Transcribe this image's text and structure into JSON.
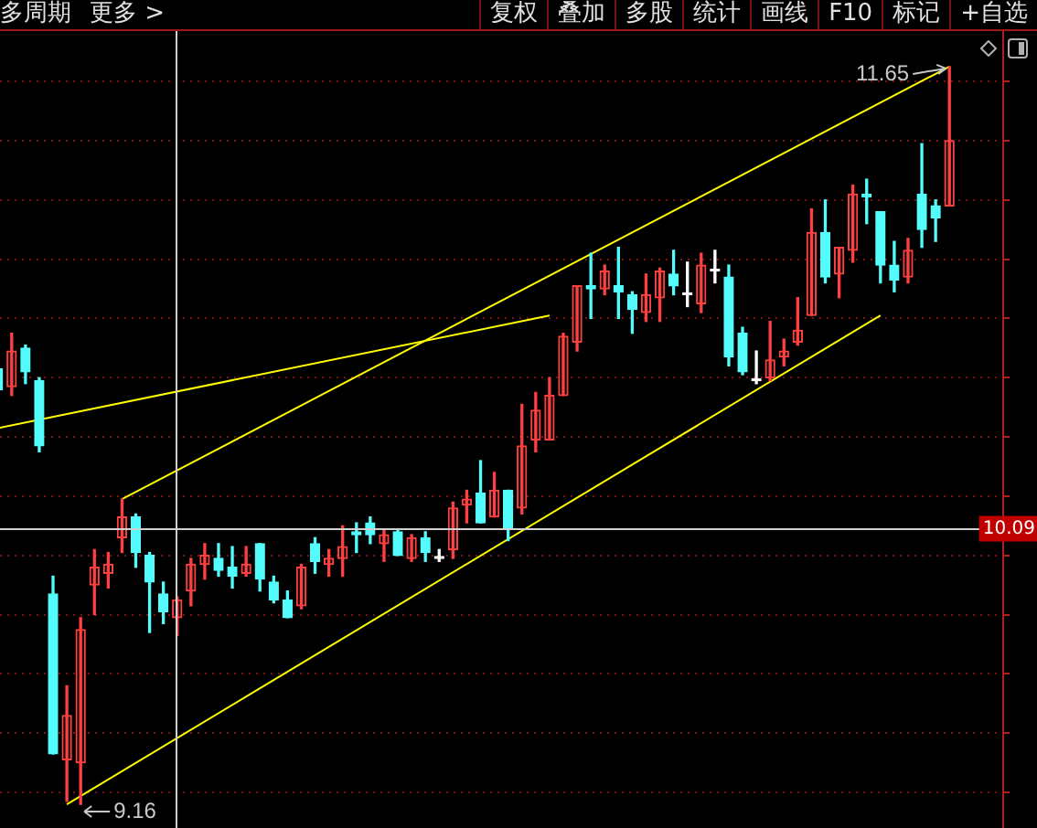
{
  "chart_data": {
    "type": "candlestick",
    "categories": [
      null,
      null,
      null,
      null,
      null,
      null,
      null,
      null,
      null,
      null,
      null,
      null,
      null,
      null,
      null,
      null,
      null,
      null,
      null,
      null,
      null,
      null,
      null,
      null,
      null,
      null,
      null,
      null,
      null,
      null,
      null,
      null,
      null,
      null,
      null,
      null,
      null,
      null,
      null,
      null,
      null,
      null,
      null,
      null,
      null,
      null,
      null,
      null,
      null,
      null,
      null,
      null,
      null,
      null,
      null,
      null,
      null,
      null,
      null,
      null,
      null,
      null,
      null,
      null,
      null,
      null,
      null,
      null,
      null,
      null
    ],
    "ohlc": [
      [
        10.63,
        10.64,
        10.55,
        10.56
      ],
      [
        10.57,
        10.75,
        10.54,
        10.69
      ],
      [
        10.7,
        10.71,
        10.58,
        10.62
      ],
      [
        10.59,
        10.6,
        10.35,
        10.37
      ],
      [
        9.87,
        9.93,
        9.33,
        9.33
      ],
      [
        9.31,
        9.56,
        9.17,
        9.46
      ],
      [
        9.3,
        9.79,
        9.16,
        9.75
      ],
      [
        9.9,
        10.02,
        9.8,
        9.96
      ],
      [
        9.94,
        10.01,
        9.89,
        9.97
      ],
      [
        10.06,
        10.19,
        10.01,
        10.13
      ],
      [
        10.13,
        10.14,
        9.96,
        10.01
      ],
      [
        10.0,
        10.01,
        9.74,
        9.91
      ],
      [
        9.87,
        9.91,
        9.77,
        9.81
      ],
      [
        9.79,
        9.86,
        9.73,
        9.85
      ],
      [
        9.88,
        9.99,
        9.83,
        9.97
      ],
      [
        9.97,
        10.04,
        9.92,
        10.0
      ],
      [
        9.99,
        10.04,
        9.93,
        9.95
      ],
      [
        9.96,
        10.03,
        9.89,
        9.93
      ],
      [
        9.94,
        10.03,
        9.93,
        9.97
      ],
      [
        10.04,
        10.04,
        9.88,
        9.92
      ],
      [
        9.91,
        9.93,
        9.84,
        9.85
      ],
      [
        9.85,
        9.88,
        9.79,
        9.79
      ],
      [
        9.83,
        9.97,
        9.82,
        9.96
      ],
      [
        10.04,
        10.06,
        9.94,
        9.98
      ],
      [
        9.97,
        10.02,
        9.93,
        9.99
      ],
      [
        9.99,
        10.1,
        9.93,
        10.03
      ],
      [
        10.08,
        10.11,
        10.01,
        10.07
      ],
      [
        10.11,
        10.13,
        10.04,
        10.07
      ],
      [
        10.04,
        10.09,
        9.98,
        10.07
      ],
      [
        10.08,
        10.09,
        10.0,
        10.0
      ],
      [
        9.99,
        10.07,
        9.98,
        10.06
      ],
      [
        10.06,
        10.08,
        9.98,
        10.01
      ],
      [
        9.99,
        10.02,
        9.98,
        9.99
      ],
      [
        10.02,
        10.18,
        9.99,
        10.16
      ],
      [
        10.17,
        10.22,
        10.11,
        10.19
      ],
      [
        10.21,
        10.32,
        10.11,
        10.11
      ],
      [
        10.13,
        10.28,
        10.13,
        10.22
      ],
      [
        10.22,
        10.22,
        10.05,
        10.09
      ],
      [
        10.16,
        10.51,
        10.14,
        10.37
      ],
      [
        10.39,
        10.55,
        10.35,
        10.49
      ],
      [
        10.39,
        10.6,
        10.39,
        10.54
      ],
      [
        10.54,
        10.75,
        10.54,
        10.74
      ],
      [
        10.72,
        10.91,
        10.69,
        10.91
      ],
      [
        10.91,
        11.02,
        10.8,
        10.9
      ],
      [
        10.9,
        10.98,
        10.88,
        10.96
      ],
      [
        10.91,
        11.04,
        10.8,
        10.89
      ],
      [
        10.88,
        10.89,
        10.75,
        10.83
      ],
      [
        10.82,
        10.95,
        10.79,
        10.88
      ],
      [
        10.87,
        10.97,
        10.79,
        10.96
      ],
      [
        10.95,
        11.03,
        10.88,
        10.91
      ],
      [
        10.88,
        10.99,
        10.84,
        10.88
      ],
      [
        10.85,
        11.02,
        10.82,
        10.98
      ],
      [
        10.96,
        11.03,
        10.92,
        10.96
      ],
      [
        10.94,
        10.98,
        10.64,
        10.67
      ],
      [
        10.75,
        10.77,
        10.61,
        10.62
      ],
      [
        10.59,
        10.69,
        10.58,
        10.59
      ],
      [
        10.6,
        10.79,
        10.59,
        10.66
      ],
      [
        10.67,
        10.73,
        10.64,
        10.69
      ],
      [
        10.72,
        10.87,
        10.71,
        10.76
      ],
      [
        10.81,
        11.17,
        10.81,
        11.09
      ],
      [
        11.09,
        11.2,
        10.92,
        10.94
      ],
      [
        10.95,
        11.04,
        10.87,
        11.04
      ],
      [
        11.03,
        11.25,
        10.99,
        11.22
      ],
      [
        11.22,
        11.27,
        11.12,
        11.21
      ],
      [
        11.16,
        11.16,
        10.92,
        10.98
      ],
      [
        10.98,
        11.06,
        10.89,
        10.93
      ],
      [
        10.94,
        11.07,
        10.92,
        11.03
      ],
      [
        11.22,
        11.39,
        11.04,
        11.1
      ],
      [
        11.18,
        11.2,
        11.06,
        11.14
      ],
      [
        11.18,
        11.65,
        11.18,
        11.4
      ]
    ],
    "series": [
      {
        "type": "line",
        "color": "#ffff00",
        "values": [
          null,
          null,
          null,
          null,
          null,
          null,
          null,
          null,
          null,
          10.19,
          null,
          null,
          null,
          null,
          null,
          null,
          null,
          null,
          null,
          null,
          null,
          null,
          null,
          null,
          null,
          null,
          null,
          null,
          null,
          null,
          null,
          null,
          null,
          null,
          null,
          null,
          null,
          null,
          null,
          null,
          null,
          null,
          null,
          null,
          null,
          null,
          null,
          null,
          null,
          null,
          null,
          null,
          null,
          null,
          null,
          null,
          null,
          null,
          null,
          null,
          null,
          null,
          null,
          null,
          null,
          null,
          null,
          null,
          null,
          11.65
        ]
      },
      {
        "type": "line",
        "color": "#ffff00",
        "values": [
          null,
          null,
          null,
          null,
          null,
          9.16,
          null,
          null,
          null,
          null,
          null,
          null,
          null,
          null,
          null,
          null,
          null,
          null,
          null,
          null,
          null,
          null,
          null,
          null,
          null,
          null,
          null,
          null,
          null,
          null,
          null,
          null,
          null,
          null,
          null,
          null,
          null,
          null,
          null,
          null,
          null,
          null,
          null,
          null,
          null,
          null,
          null,
          null,
          null,
          null,
          null,
          null,
          null,
          null,
          null,
          null,
          null,
          null,
          null,
          null,
          null,
          null,
          null,
          null,
          10.81,
          null,
          null,
          null,
          null,
          null
        ]
      },
      {
        "type": "line",
        "color": "#ffff00",
        "values": [
          10.43,
          null,
          null,
          null,
          null,
          null,
          null,
          null,
          null,
          null,
          null,
          null,
          null,
          null,
          null,
          null,
          null,
          null,
          null,
          null,
          null,
          null,
          null,
          null,
          null,
          null,
          null,
          null,
          null,
          null,
          null,
          null,
          null,
          null,
          null,
          null,
          null,
          null,
          null,
          null,
          10.81,
          null,
          null,
          null,
          null,
          null,
          null,
          null,
          null,
          null,
          null,
          null,
          null,
          null,
          null,
          null,
          null,
          null,
          null,
          null,
          null,
          null,
          null,
          null,
          null,
          null,
          null,
          null,
          null,
          null
        ]
      }
    ],
    "ylim": [
      9.08,
      11.77
    ],
    "yticks": [
      {
        "value": 9.2,
        "label": null
      },
      {
        "value": 9.4,
        "label": null
      },
      {
        "value": 9.6,
        "label": null
      },
      {
        "value": 9.8,
        "label": null
      },
      {
        "value": 10.0,
        "label": null
      },
      {
        "value": 10.2,
        "label": null
      },
      {
        "value": 10.4,
        "label": null
      },
      {
        "value": 10.6,
        "label": null
      },
      {
        "value": 10.8,
        "label": null
      },
      {
        "value": 11.0,
        "label": null
      },
      {
        "value": 11.2,
        "label": null
      },
      {
        "value": 11.4,
        "label": null
      },
      {
        "value": 11.6,
        "label": null
      }
    ],
    "tick_labels": false,
    "grid": "y",
    "ref_lines": [
      {
        "axis": "y",
        "value": 10.09,
        "label": "10.09",
        "color": "#d0d0d0"
      }
    ],
    "annotations": [
      "多周期",
      "更多 >",
      "复权",
      "叠加",
      "多股",
      "统计",
      "画线",
      "F10",
      "标记",
      "+自选",
      "11.65",
      "9.16"
    ]
  }
}
